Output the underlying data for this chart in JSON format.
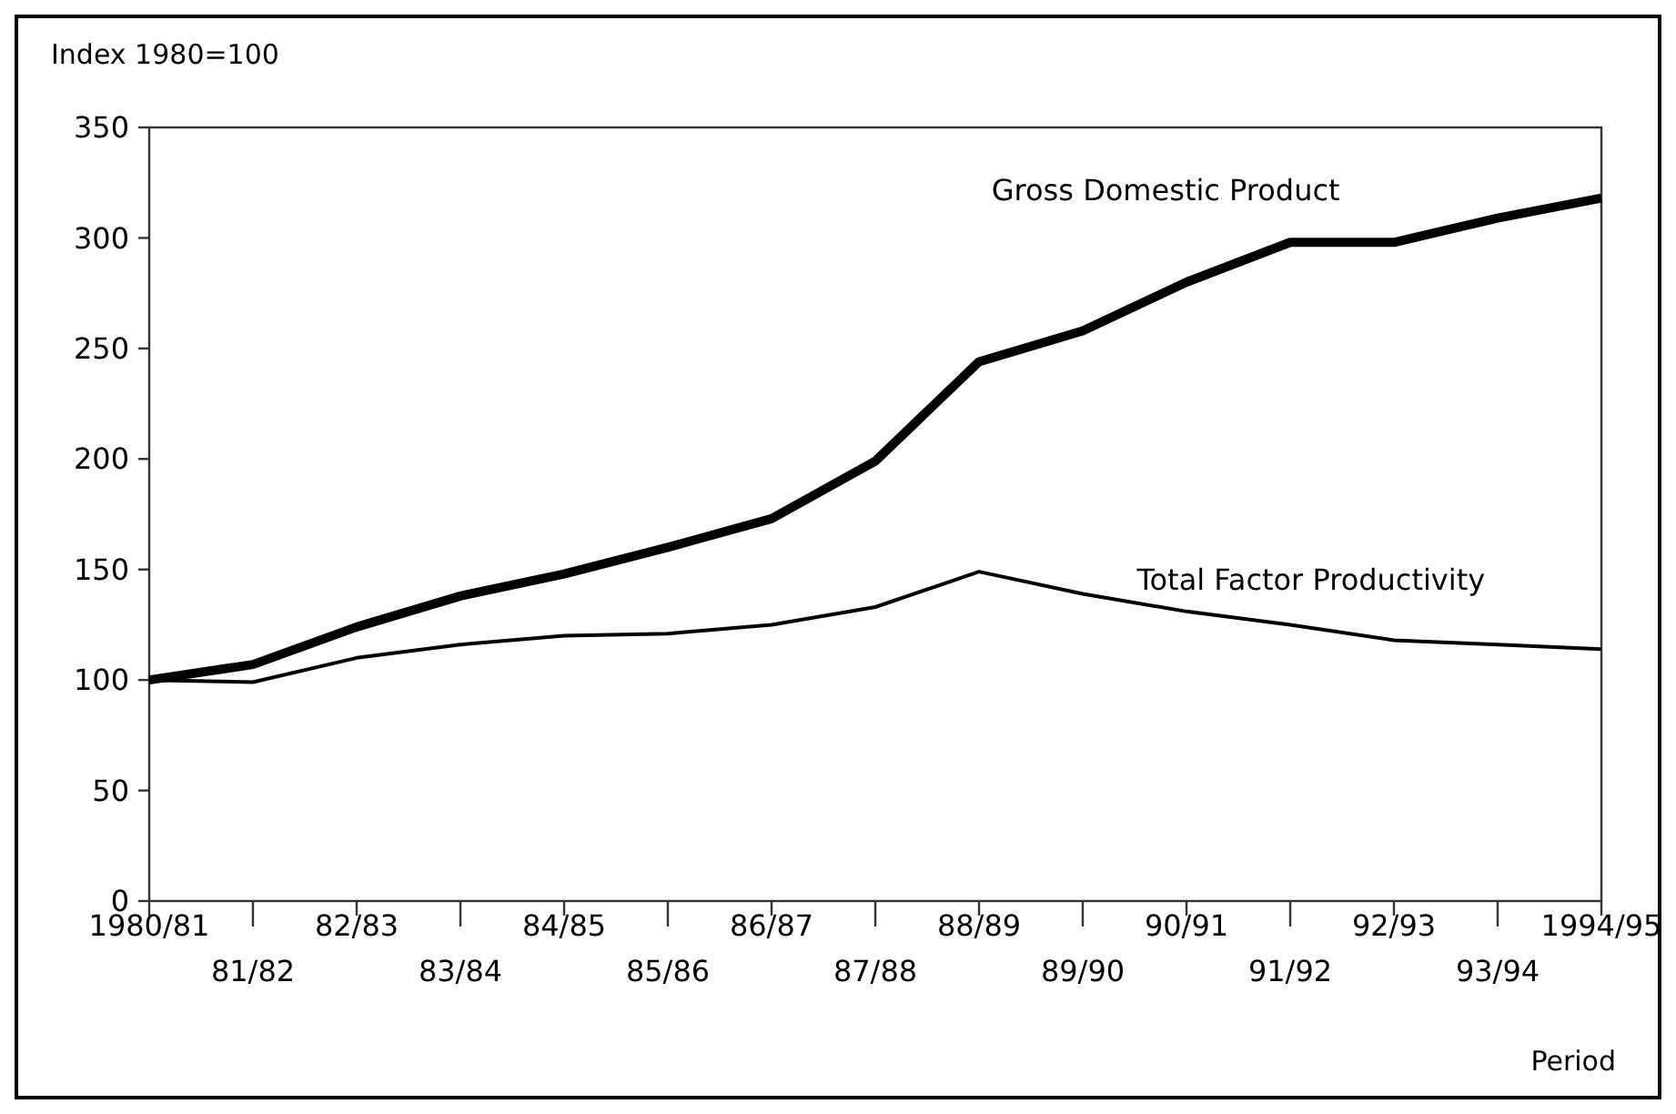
{
  "chart_data": {
    "type": "line",
    "ylabel": "Index 1980=100",
    "xlabel": "Period",
    "categories": [
      "1980/81",
      "81/82",
      "82/83",
      "83/84",
      "84/85",
      "85/86",
      "86/87",
      "87/88",
      "88/89",
      "89/90",
      "90/91",
      "91/92",
      "92/93",
      "93/94",
      "1994/95"
    ],
    "series": [
      {
        "name": "Gross Domestic Product",
        "color": "#000000",
        "values": [
          100,
          107,
          124,
          138,
          148,
          160,
          173,
          199,
          244,
          258,
          280,
          298,
          298,
          309,
          318
        ]
      },
      {
        "name": "Total Factor Productivity",
        "color": "#000000",
        "values": [
          100,
          99,
          110,
          116,
          120,
          121,
          125,
          133,
          149,
          139,
          131,
          125,
          118,
          116,
          114
        ]
      }
    ],
    "ylim": [
      0,
      350
    ],
    "yticks": [
      0,
      50,
      100,
      150,
      200,
      250,
      300,
      350
    ],
    "grid": false,
    "legend": false,
    "marker": "none",
    "line_style": "solid"
  }
}
